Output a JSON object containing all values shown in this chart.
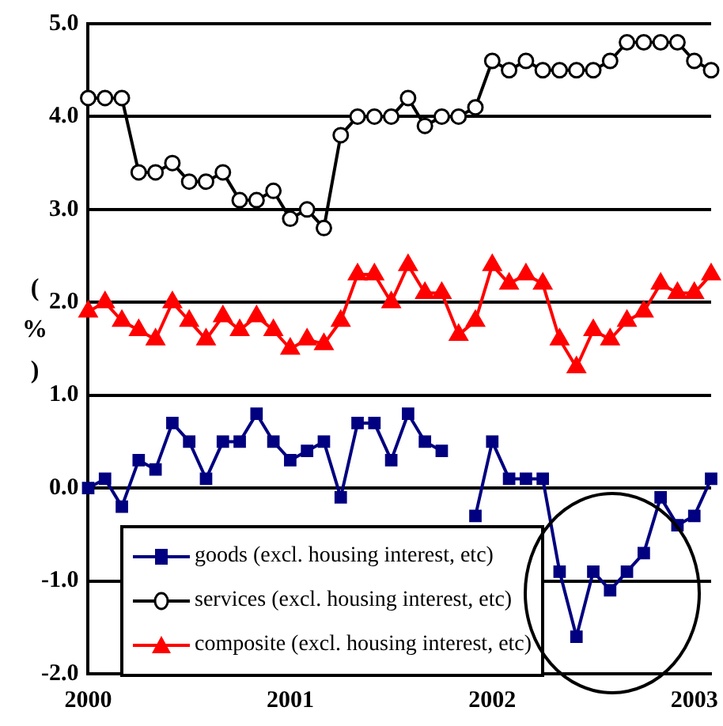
{
  "chart_data": {
    "type": "line",
    "ylabel": "(%)",
    "categories": [
      "2000",
      null,
      null,
      null,
      null,
      null,
      null,
      null,
      null,
      null,
      null,
      null,
      "2001",
      null,
      null,
      null,
      null,
      null,
      null,
      null,
      null,
      null,
      null,
      null,
      "2002",
      null,
      null,
      null,
      null,
      null,
      null,
      null,
      null,
      null,
      null,
      null,
      "2003",
      null
    ],
    "series": [
      {
        "name": "goods (excl. housing interest, etc)",
        "color": "#000080",
        "marker": "square",
        "values": [
          0.0,
          0.1,
          -0.2,
          0.3,
          0.2,
          0.7,
          0.5,
          0.1,
          0.5,
          0.5,
          0.8,
          0.5,
          0.3,
          0.4,
          0.5,
          -0.1,
          0.7,
          0.7,
          0.3,
          0.8,
          0.5,
          0.4,
          null,
          -0.3,
          0.5,
          0.1,
          0.1,
          0.1,
          -0.9,
          -1.6,
          -0.9,
          -1.1,
          -0.9,
          -0.7,
          -0.1,
          -0.4,
          -0.3,
          0.1
        ]
      },
      {
        "name": "services (excl. housing interest, etc)",
        "color": "#000000",
        "marker": "circle",
        "values": [
          4.2,
          4.2,
          4.2,
          3.4,
          3.4,
          3.5,
          3.3,
          3.3,
          3.4,
          3.1,
          3.1,
          3.2,
          2.9,
          3.0,
          2.8,
          3.8,
          4.0,
          4.0,
          4.0,
          4.2,
          3.9,
          4.0,
          4.0,
          4.1,
          4.6,
          4.5,
          4.6,
          4.5,
          4.5,
          4.5,
          4.5,
          4.6,
          4.8,
          4.8,
          4.8,
          4.8,
          4.6,
          4.5
        ]
      },
      {
        "name": "composite (excl. housing interest, etc)",
        "color": "#ff0000",
        "marker": "triangle",
        "values": [
          1.9,
          2.0,
          1.8,
          1.7,
          1.6,
          2.0,
          1.8,
          1.6,
          1.85,
          1.7,
          1.85,
          1.7,
          1.5,
          1.6,
          1.55,
          1.8,
          2.3,
          2.3,
          2.0,
          2.4,
          2.1,
          2.1,
          1.65,
          1.8,
          2.4,
          2.2,
          2.3,
          2.2,
          1.6,
          1.3,
          1.7,
          1.6,
          1.8,
          1.9,
          2.2,
          2.1,
          2.1,
          2.3
        ]
      }
    ],
    "ylim": [
      -2,
      5
    ],
    "yticks": [
      {
        "value": -2,
        "label": "-2.0"
      },
      {
        "value": -1,
        "label": "-1.0"
      },
      {
        "value": 0,
        "label": "0.0"
      },
      {
        "value": 1,
        "label": "1.0"
      },
      {
        "value": 2,
        "label": "2.0"
      },
      {
        "value": 3,
        "label": "3.0"
      },
      {
        "value": 4,
        "label": "4.0"
      },
      {
        "value": 5,
        "label": "5.0"
      }
    ],
    "grid": "y",
    "legend": "bottom left"
  }
}
